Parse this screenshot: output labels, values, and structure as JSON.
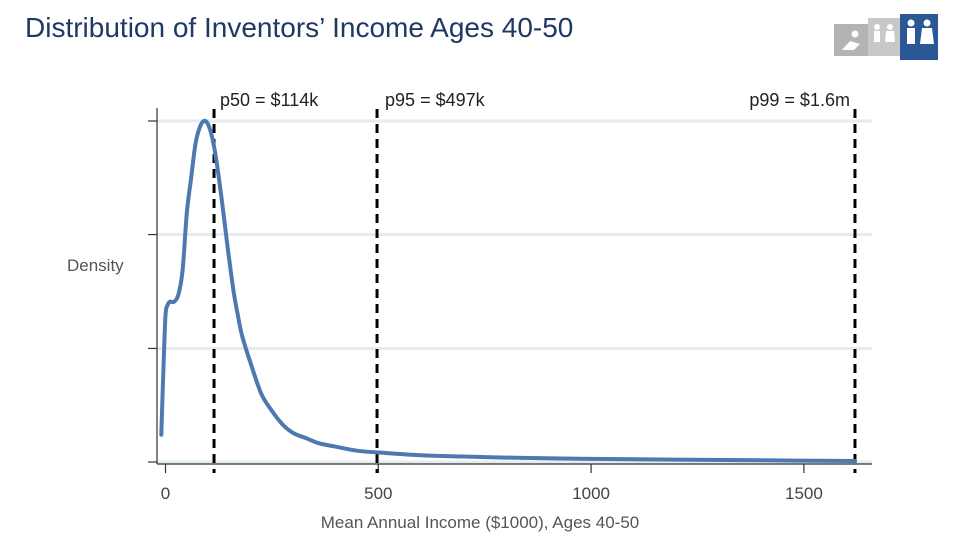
{
  "title": "Distribution of Inventors’ Income Ages 40-50",
  "logo": {
    "icon": "family-people-icon",
    "accent": "#2b5797",
    "secondary": "#b3b3b3"
  },
  "chart_data": {
    "type": "line",
    "title": "Distribution of Inventors’ Income Ages 40-50",
    "xlabel": "Mean Annual Income ($1000), Ages 40-50",
    "ylabel": "Density",
    "xlim": [
      -20,
      1660
    ],
    "ylim": [
      0,
      1
    ],
    "xticks": [
      0,
      500,
      1000,
      1500
    ],
    "xtick_labels": [
      "0",
      "500",
      "1000",
      "1500"
    ],
    "yticks": [
      0,
      0.333,
      0.667,
      1.0
    ],
    "ytick_labels": [
      "",
      "",
      "",
      ""
    ],
    "grid": true,
    "series": [
      {
        "color": "#4e79b0",
        "x": [
          -10,
          -5,
          0,
          5,
          10,
          20,
          30,
          40,
          50,
          60,
          70,
          80,
          90,
          100,
          110,
          120,
          130,
          140,
          150,
          160,
          170,
          180,
          200,
          225,
          250,
          275,
          300,
          330,
          360,
          400,
          450,
          500,
          600,
          700,
          800,
          1000,
          1200,
          1400,
          1620
        ],
        "y": [
          0.08,
          0.27,
          0.43,
          0.46,
          0.47,
          0.47,
          0.49,
          0.56,
          0.73,
          0.83,
          0.93,
          0.98,
          1.0,
          0.99,
          0.95,
          0.88,
          0.79,
          0.69,
          0.59,
          0.5,
          0.43,
          0.37,
          0.29,
          0.2,
          0.15,
          0.11,
          0.085,
          0.07,
          0.055,
          0.045,
          0.033,
          0.028,
          0.02,
          0.016,
          0.013,
          0.009,
          0.007,
          0.005,
          0.003
        ]
      }
    ],
    "vlines": [
      {
        "x": 114,
        "label": "p50 = $114k"
      },
      {
        "x": 497,
        "label": "p95 = $497k"
      },
      {
        "x": 1620,
        "label": "p99 = $1.6m"
      }
    ]
  }
}
